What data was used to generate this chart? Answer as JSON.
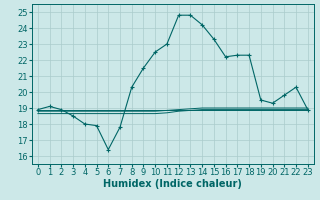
{
  "xlabel": "Humidex (Indice chaleur)",
  "bg_color": "#cce8e8",
  "grid_color": "#aacccc",
  "line_color": "#006666",
  "xlim": [
    -0.5,
    23.5
  ],
  "ylim": [
    15.5,
    25.5
  ],
  "yticks": [
    16,
    17,
    18,
    19,
    20,
    21,
    22,
    23,
    24,
    25
  ],
  "xticks": [
    0,
    1,
    2,
    3,
    4,
    5,
    6,
    7,
    8,
    9,
    10,
    11,
    12,
    13,
    14,
    15,
    16,
    17,
    18,
    19,
    20,
    21,
    22,
    23
  ],
  "main_line": [
    18.9,
    19.1,
    18.9,
    18.5,
    18.0,
    17.9,
    16.4,
    17.8,
    20.3,
    21.5,
    22.5,
    23.0,
    24.8,
    24.8,
    24.2,
    23.3,
    22.2,
    22.3,
    22.3,
    19.5,
    19.3,
    19.8,
    20.3,
    18.9
  ],
  "flat_line1": [
    18.9,
    18.9,
    18.9,
    18.9,
    18.9,
    18.9,
    18.9,
    18.9,
    18.9,
    18.9,
    18.9,
    18.9,
    18.9,
    18.9,
    18.9,
    18.9,
    18.9,
    18.9,
    18.9,
    18.9,
    18.9,
    18.9,
    18.9,
    18.9
  ],
  "flat_line2": [
    18.8,
    18.8,
    18.8,
    18.8,
    18.8,
    18.8,
    18.8,
    18.8,
    18.8,
    18.8,
    18.8,
    18.85,
    18.9,
    18.95,
    19.0,
    19.0,
    19.0,
    19.0,
    19.0,
    19.0,
    19.0,
    19.0,
    19.0,
    19.0
  ],
  "flat_line3": [
    18.65,
    18.65,
    18.65,
    18.65,
    18.65,
    18.65,
    18.65,
    18.65,
    18.65,
    18.65,
    18.65,
    18.7,
    18.8,
    18.85,
    18.9,
    18.9,
    18.9,
    18.9,
    18.9,
    18.9,
    18.9,
    18.9,
    18.9,
    18.9
  ],
  "xlabel_fontsize": 7,
  "tick_fontsize": 6
}
